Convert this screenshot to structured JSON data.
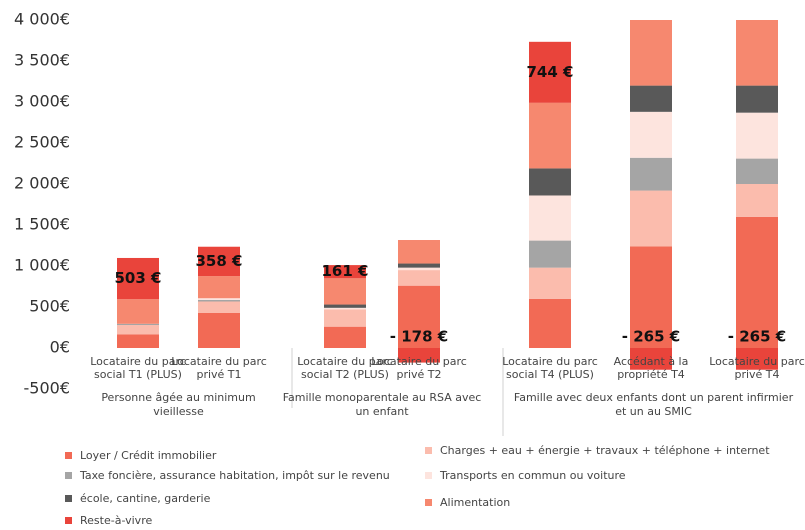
{
  "chart_data": {
    "type": "stacked_bar",
    "categories": [
      "Locataire du parc social T1 (PLUS)",
      "Locataire du parc privé T1",
      "Locataire du parc social T2 (PLUS)",
      "Locataire du parc privé T2",
      "Locataire du parc social T4 (PLUS)",
      "Accédant à la propriété T4",
      "Locataire du parc privé T4"
    ],
    "groups": [
      {
        "label": "Personne âgée au minimum vieillesse",
        "members": [
          0,
          1
        ]
      },
      {
        "label": "Famille monoparentale au RSA avec un enfant",
        "members": [
          2,
          3
        ]
      },
      {
        "label": "Famille avec deux enfants dont un parent infirmier et un au SMIC",
        "members": [
          4,
          5,
          6
        ]
      }
    ],
    "series": [
      {
        "name": "Loyer / Crédit immobilier",
        "color": "#f26a55",
        "values": [
          165,
          427,
          260,
          760,
          600,
          1240,
          1600
        ]
      },
      {
        "name": "Charges + eau + énergie + travaux + téléphone + internet",
        "color": "#fbbcad",
        "values": [
          115,
          140,
          210,
          190,
          380,
          680,
          400
        ]
      },
      {
        "name": "Taxe foncière, assurance habitation, impôt sur le revenu",
        "color": "#a5a5a5",
        "values": [
          15,
          20,
          0,
          0,
          330,
          400,
          310
        ]
      },
      {
        "name": "Transports en commun ou voiture",
        "color": "#fde4de",
        "values": [
          0,
          20,
          20,
          30,
          550,
          560,
          560
        ]
      },
      {
        "name": "école, cantine, garderie",
        "color": "#595959",
        "values": [
          0,
          0,
          40,
          50,
          330,
          320,
          330
        ]
      },
      {
        "name": "Alimentation",
        "color": "#f6886f",
        "values": [
          300,
          270,
          320,
          287,
          800,
          800,
          800
        ]
      },
      {
        "name": "Reste-à-vivre",
        "color": "#e9443b",
        "values": [
          503,
          358,
          161,
          -178,
          744,
          -265,
          -265
        ],
        "value_labels": [
          "503 €",
          "358 €",
          "161 €",
          "- 178 €",
          "744 €",
          "- 265 €",
          "- 265 €"
        ]
      }
    ],
    "ylim": [
      -500,
      4000
    ],
    "yticks": [
      {
        "value": -500,
        "label": "-500€"
      },
      {
        "value": 0,
        "label": "0€"
      },
      {
        "value": 500,
        "label": "500€"
      },
      {
        "value": 1000,
        "label": "1 000€"
      },
      {
        "value": 1500,
        "label": "1 500€"
      },
      {
        "value": 2000,
        "label": "2 000€"
      },
      {
        "value": 2500,
        "label": "2 500€"
      },
      {
        "value": 3000,
        "label": "3 000€"
      },
      {
        "value": 3500,
        "label": "3 500€"
      },
      {
        "value": 4000,
        "label": "4 000€"
      }
    ],
    "grid": false
  }
}
